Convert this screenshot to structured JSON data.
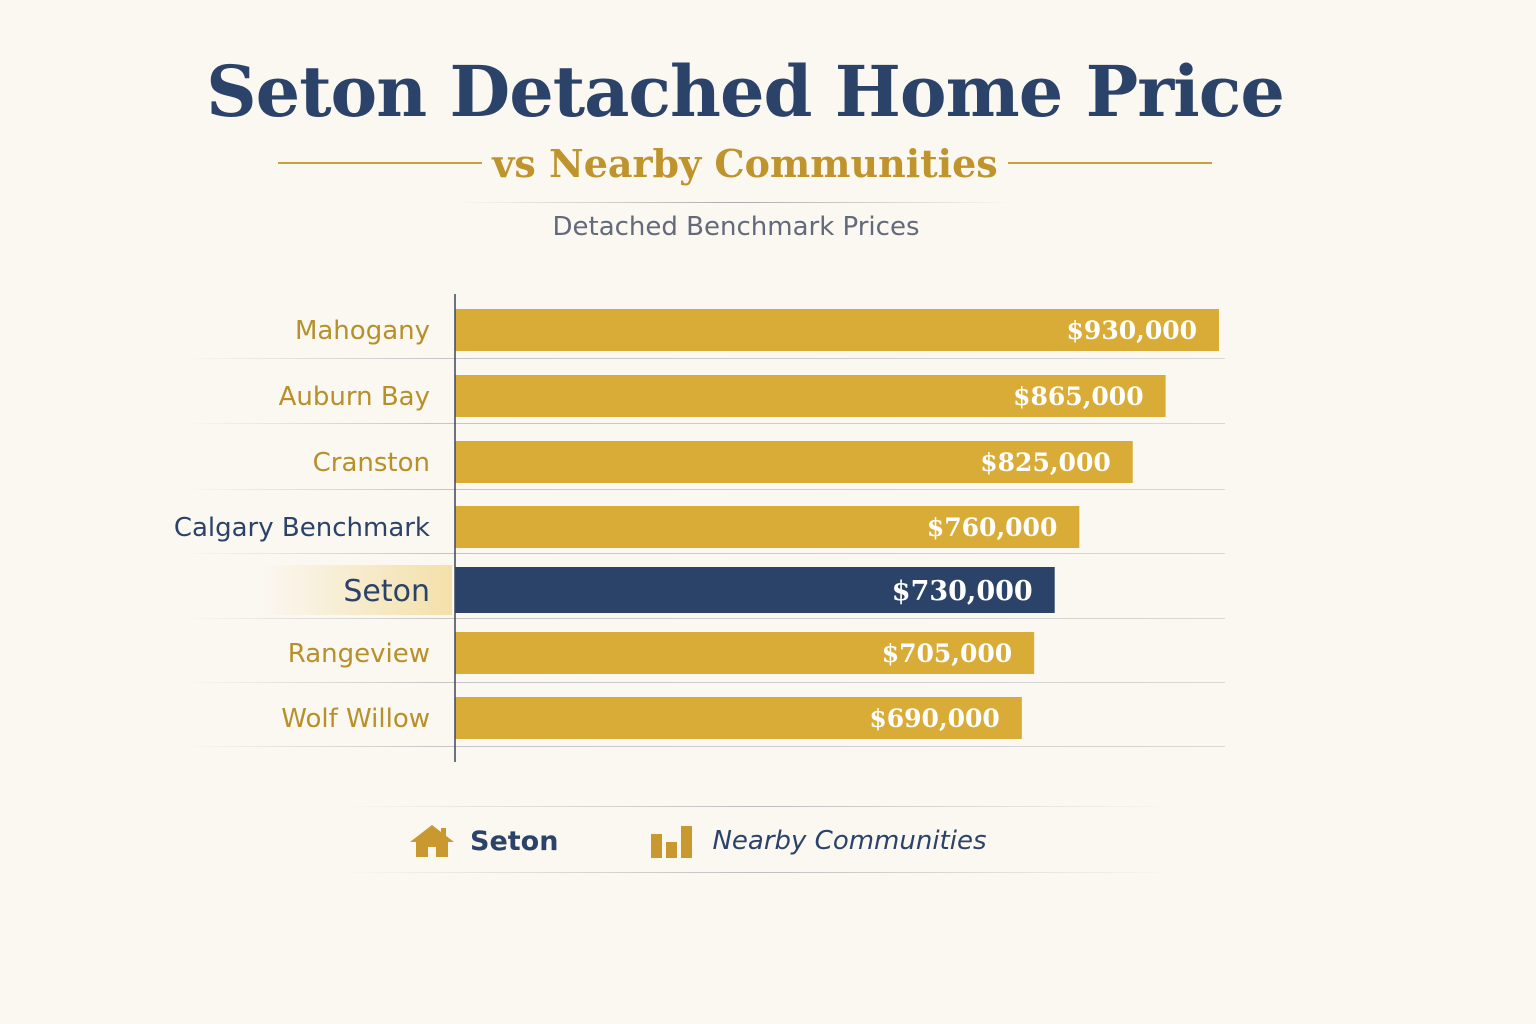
{
  "header": {
    "title": "Seton Detached Home Price",
    "subtitle": "vs Nearby Communities",
    "caption": "Detached Benchmark Prices"
  },
  "legend": {
    "seton_label": "Seton",
    "seton_icon": "house-icon",
    "nearby_label": "Nearby Communities",
    "nearby_icon": "bar-chart-icon"
  },
  "colors": {
    "highlight": "#2c4369",
    "nearby": "#d9ac37",
    "label_gold": "#b8902a",
    "label_navy": "#2c4369"
  },
  "chart_data": {
    "type": "bar",
    "orientation": "horizontal",
    "categories": [
      "Mahogany",
      "Auburn Bay",
      "Cranston",
      "Calgary Benchmark",
      "Seton",
      "Rangeview",
      "Wolf Willow"
    ],
    "values": [
      930000,
      865000,
      825000,
      760000,
      730000,
      705000,
      690000
    ],
    "value_labels": [
      "$930,000",
      "$865,000",
      "$825,000",
      "$760,000",
      "$730,000",
      "$705,000",
      "$690,000"
    ],
    "highlight": "Seton",
    "title": "Seton Detached Home Price",
    "subtitle": "vs Nearby Communities",
    "xlabel": "",
    "ylabel": "",
    "grid": false
  }
}
